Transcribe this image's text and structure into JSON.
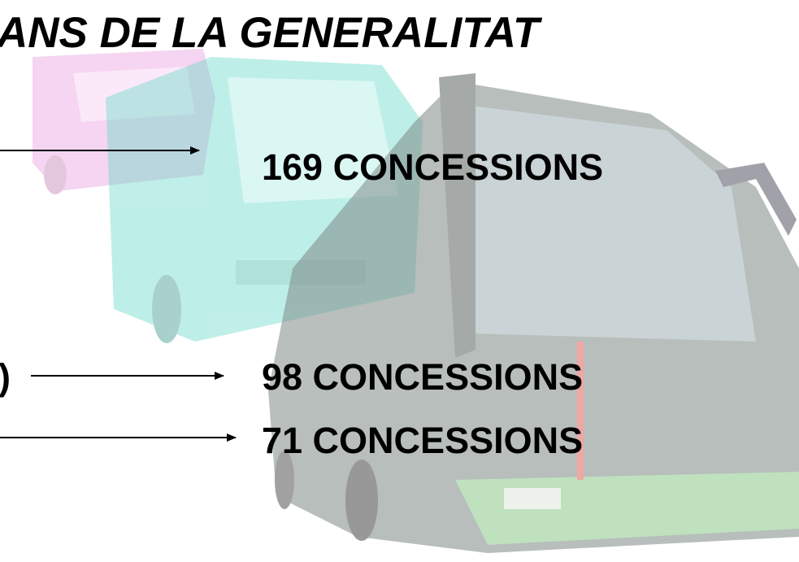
{
  "title": "ANS DE LA GENERALITAT",
  "items": [
    {
      "label": "169 CONCESSIONS"
    },
    {
      "lead": ")",
      "label": "98 CONCESSIONS"
    },
    {
      "label": "71 CONCESSIONS"
    }
  ]
}
